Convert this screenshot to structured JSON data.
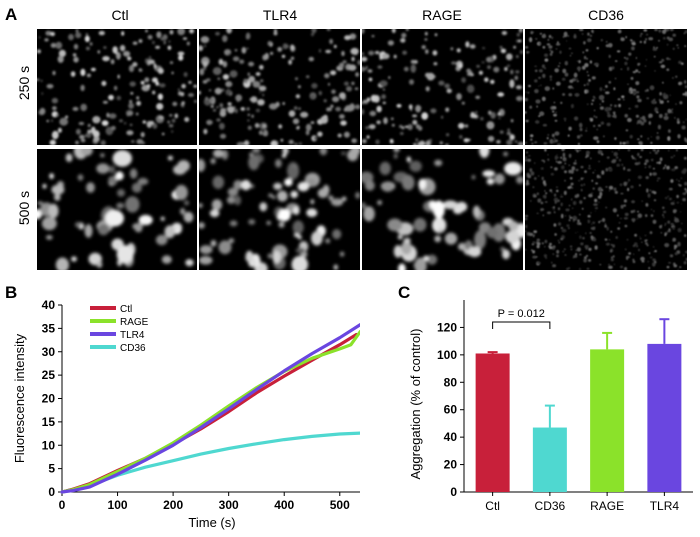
{
  "panel_A": {
    "letter": "A",
    "columns": [
      "Ctl",
      "TLR4",
      "RAGE",
      "CD36"
    ],
    "rows": [
      "250 s",
      "500 s"
    ]
  },
  "panel_B": {
    "letter": "B"
  },
  "panel_C": {
    "letter": "C",
    "annotation": "P = 0.012"
  },
  "colors": {
    "Ctl": "#c8203a",
    "RAGE": "#8be22a",
    "TLR4": "#6a46e0",
    "CD36": "#4fd8d0"
  },
  "chart_data": [
    {
      "type": "line",
      "xlabel": "Time (s)",
      "ylabel": "Fluorescence intensity",
      "xlim": [
        0,
        540
      ],
      "ylim": [
        0,
        40
      ],
      "xticks": [
        0,
        100,
        200,
        300,
        400,
        500
      ],
      "yticks": [
        0,
        5,
        10,
        15,
        20,
        25,
        30,
        35,
        40
      ],
      "legend": "top-left",
      "series": [
        {
          "name": "Ctl",
          "x": [
            0,
            20,
            50,
            100,
            150,
            200,
            250,
            300,
            350,
            400,
            450,
            500,
            530
          ],
          "y": [
            0,
            0.6,
            1.8,
            4.6,
            7.2,
            10.2,
            13.5,
            17.2,
            21.2,
            24.8,
            28.2,
            31.5,
            33.7
          ]
        },
        {
          "name": "RAGE",
          "x": [
            0,
            20,
            50,
            100,
            150,
            200,
            250,
            300,
            350,
            400,
            450,
            500,
            520,
            537
          ],
          "y": [
            0,
            0.5,
            1.6,
            4.4,
            7.2,
            10.5,
            14.3,
            18.4,
            22.3,
            25.8,
            28.6,
            30.6,
            31.5,
            34.3
          ]
        },
        {
          "name": "TLR4",
          "x": [
            0,
            20,
            50,
            100,
            150,
            200,
            250,
            300,
            350,
            400,
            450,
            500,
            537
          ],
          "y": [
            0,
            0.3,
            1.1,
            3.8,
            6.8,
            10.0,
            13.8,
            17.8,
            21.9,
            25.9,
            29.6,
            33.0,
            35.8
          ]
        },
        {
          "name": "CD36",
          "x": [
            0,
            20,
            50,
            100,
            150,
            200,
            250,
            300,
            350,
            400,
            450,
            500,
            537
          ],
          "y": [
            0,
            0.6,
            1.4,
            3.6,
            5.3,
            6.7,
            8.1,
            9.3,
            10.3,
            11.2,
            11.9,
            12.4,
            12.6
          ]
        }
      ]
    },
    {
      "type": "bar",
      "ylabel": "Aggregation (% of control)",
      "ylim": [
        0,
        140
      ],
      "yticks": [
        0,
        20,
        40,
        60,
        80,
        100,
        120
      ],
      "categories": [
        "Ctl",
        "CD36",
        "RAGE",
        "TLR4"
      ],
      "values": [
        101,
        47,
        104,
        108
      ],
      "errors": [
        1,
        16,
        12,
        18
      ],
      "significance": {
        "from": "Ctl",
        "to": "CD36",
        "label": "P = 0.012"
      }
    }
  ]
}
